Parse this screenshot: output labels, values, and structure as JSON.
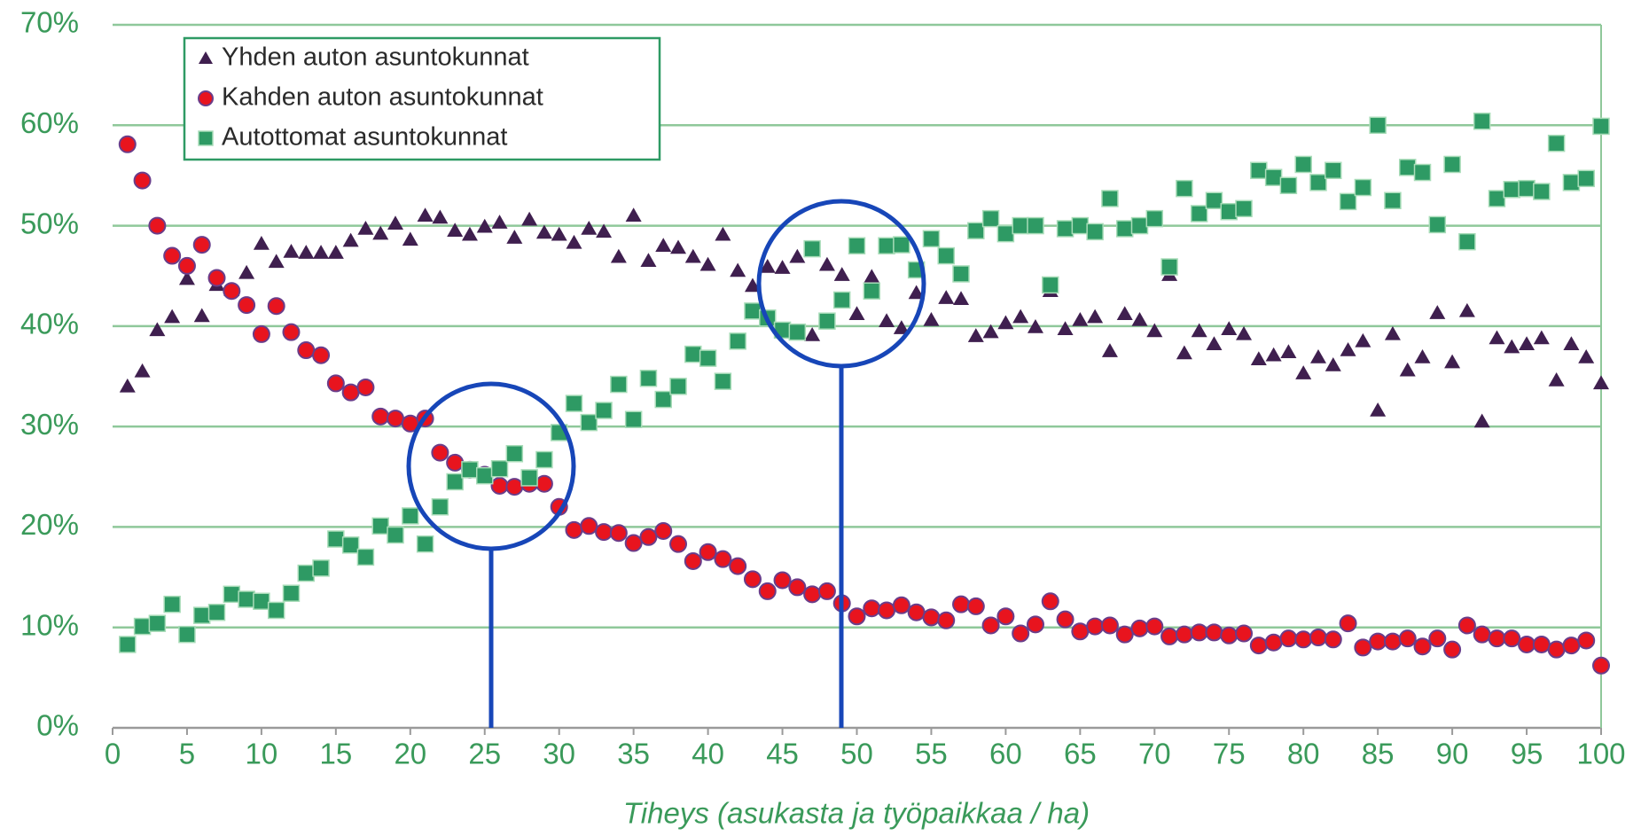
{
  "chart_data": {
    "type": "scatter",
    "x_label": "Tiheys (asukasta ja työpaikkaa / ha)",
    "x": [
      1,
      2,
      3,
      4,
      5,
      6,
      7,
      8,
      9,
      10,
      11,
      12,
      13,
      14,
      15,
      16,
      17,
      18,
      19,
      20,
      21,
      22,
      23,
      24,
      25,
      26,
      27,
      28,
      29,
      30,
      31,
      32,
      33,
      34,
      35,
      36,
      37,
      38,
      39,
      40,
      41,
      42,
      43,
      44,
      45,
      46,
      47,
      48,
      49,
      50,
      51,
      52,
      53,
      54,
      55,
      56,
      57,
      58,
      59,
      60,
      61,
      62,
      63,
      64,
      65,
      66,
      67,
      68,
      69,
      70,
      71,
      72,
      73,
      74,
      75,
      76,
      77,
      78,
      79,
      80,
      81,
      82,
      83,
      84,
      85,
      86,
      87,
      88,
      89,
      90,
      91,
      92,
      93,
      94,
      95,
      96,
      97,
      98,
      99,
      100
    ],
    "series": [
      {
        "name": "Yhden auton asuntokunnat",
        "color": "#3f1f4f",
        "marker": "triangle",
        "values": [
          34.0,
          35.5,
          39.6,
          40.9,
          44.7,
          41.0,
          44.1,
          43.6,
          45.3,
          48.2,
          46.4,
          47.4,
          47.3,
          47.3,
          47.3,
          48.5,
          49.7,
          49.2,
          50.2,
          48.6,
          51.0,
          50.8,
          49.5,
          49.1,
          49.9,
          50.3,
          48.8,
          50.6,
          49.3,
          49.1,
          48.3,
          49.7,
          49.4,
          46.9,
          51.0,
          46.5,
          48.0,
          47.8,
          46.9,
          46.1,
          49.1,
          45.5,
          44.0,
          45.9,
          45.8,
          46.9,
          39.1,
          46.1,
          45.1,
          41.2,
          44.9,
          40.5,
          39.8,
          43.3,
          40.6,
          42.8,
          42.7,
          39.0,
          39.4,
          40.3,
          40.9,
          39.9,
          43.5,
          39.7,
          40.6,
          40.9,
          37.5,
          41.2,
          40.6,
          39.5,
          45.1,
          37.3,
          39.5,
          38.2,
          39.7,
          39.2,
          36.7,
          37.1,
          37.4,
          35.3,
          36.9,
          36.1,
          37.6,
          38.5,
          31.6,
          39.2,
          35.6,
          36.9,
          41.3,
          36.4,
          41.5,
          30.5,
          38.8,
          37.9,
          38.2,
          38.8,
          34.6,
          38.2,
          36.9,
          34.3
        ]
      },
      {
        "name": "Kahden auton asuntokunnat",
        "color": "#e8141e",
        "marker": "circle",
        "values": [
          58.1,
          54.5,
          50.0,
          47.0,
          46.0,
          48.1,
          44.8,
          43.5,
          42.1,
          39.2,
          42.0,
          39.4,
          37.6,
          37.1,
          34.3,
          33.4,
          33.9,
          31.0,
          30.8,
          30.3,
          30.8,
          27.4,
          26.4,
          25.7,
          25.2,
          24.1,
          24.0,
          24.3,
          24.3,
          22.0,
          19.7,
          20.1,
          19.5,
          19.4,
          18.4,
          19.0,
          19.6,
          18.3,
          16.6,
          17.5,
          16.8,
          16.1,
          14.8,
          13.6,
          14.7,
          14.0,
          13.3,
          13.6,
          12.4,
          11.1,
          11.9,
          11.7,
          12.2,
          11.5,
          11.0,
          10.7,
          12.3,
          12.1,
          10.2,
          11.1,
          9.4,
          10.3,
          12.6,
          10.8,
          9.6,
          10.1,
          10.2,
          9.3,
          9.9,
          10.1,
          9.1,
          9.3,
          9.5,
          9.5,
          9.2,
          9.4,
          8.2,
          8.5,
          8.9,
          8.8,
          9.0,
          8.8,
          10.4,
          8.0,
          8.6,
          8.6,
          8.9,
          8.1,
          8.9,
          7.8,
          10.2,
          9.3,
          8.9,
          8.9,
          8.3,
          8.3,
          7.8,
          8.2,
          8.7,
          6.2
        ]
      },
      {
        "name": "Autottomat asuntokunnat",
        "color": "#2e9a64",
        "marker": "square",
        "values": [
          8.3,
          10.1,
          10.4,
          12.3,
          9.3,
          11.2,
          11.5,
          13.3,
          12.8,
          12.6,
          11.7,
          13.4,
          15.4,
          15.9,
          18.8,
          18.2,
          17.0,
          20.1,
          19.2,
          21.1,
          18.3,
          22.0,
          24.5,
          25.7,
          25.1,
          25.8,
          27.3,
          24.9,
          26.7,
          29.4,
          32.3,
          30.4,
          31.6,
          34.2,
          30.7,
          34.8,
          32.7,
          34.0,
          37.2,
          36.8,
          34.5,
          38.5,
          41.5,
          40.8,
          39.6,
          39.4,
          47.7,
          40.5,
          42.6,
          48.0,
          43.5,
          48.0,
          48.1,
          45.6,
          48.7,
          47.0,
          45.2,
          49.5,
          50.7,
          49.2,
          50.0,
          50.0,
          44.1,
          49.7,
          50.0,
          49.4,
          52.7,
          49.7,
          50.0,
          50.7,
          45.9,
          53.7,
          51.2,
          52.5,
          51.4,
          51.7,
          55.5,
          54.8,
          54.0,
          56.1,
          54.3,
          55.5,
          52.4,
          53.8,
          60.0,
          52.5,
          55.8,
          55.3,
          50.1,
          56.1,
          48.4,
          60.4,
          52.7,
          53.6,
          53.7,
          53.4,
          58.2,
          54.3,
          54.7,
          59.9
        ]
      }
    ],
    "xlim": [
      0,
      100
    ],
    "xticks": [
      0,
      5,
      10,
      15,
      20,
      25,
      30,
      35,
      40,
      45,
      50,
      55,
      60,
      65,
      70,
      75,
      80,
      85,
      90,
      95,
      100
    ],
    "ylim": [
      0,
      70
    ],
    "yticks": [
      {
        "value": 0,
        "label": "0%"
      },
      {
        "value": 10,
        "label": "10%"
      },
      {
        "value": 20,
        "label": "20%"
      },
      {
        "value": 30,
        "label": "30%"
      },
      {
        "value": 40,
        "label": "40%"
      },
      {
        "value": 50,
        "label": "50%"
      },
      {
        "value": 60,
        "label": "60%"
      },
      {
        "value": 70,
        "label": "70%"
      }
    ],
    "grid": true,
    "legend": "top-left"
  }
}
